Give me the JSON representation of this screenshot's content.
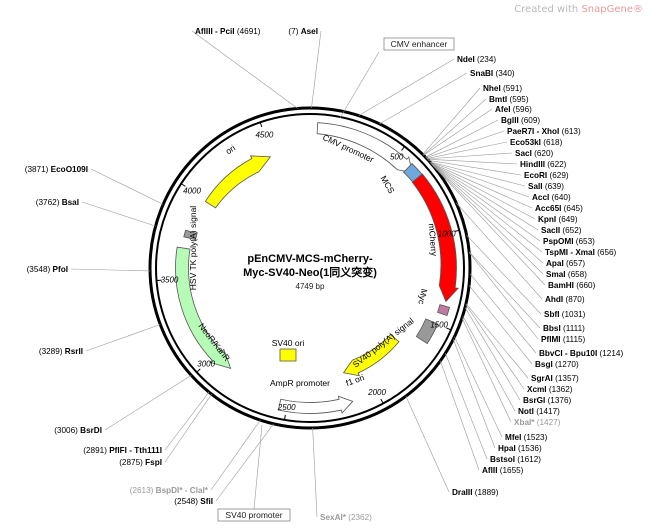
{
  "credit": {
    "text": "Created with ",
    "brand": "SnapGene®"
  },
  "plasmid": {
    "name_line1": "pEnCMV-MCS-mCherry-",
    "name_line2": "Myc-SV40-Neo(1同义突变)",
    "size_line": "4749 bp"
  },
  "ticks": [
    "500",
    "1000",
    "1500",
    "2000",
    "2500",
    "3000",
    "3500",
    "4000",
    "4500"
  ],
  "features": [
    {
      "name": "ori",
      "label": "ori",
      "color": "#ffff00"
    },
    {
      "name": "cmv-promoter",
      "label": "CMV promoter",
      "color": "#ffffff"
    },
    {
      "name": "mcs",
      "label": "MCS",
      "color": "#6fa8dc"
    },
    {
      "name": "mcherry",
      "label": "mCherry",
      "color": "#ff0000"
    },
    {
      "name": "myc",
      "label": "Myc",
      "color": "#c27ba0"
    },
    {
      "name": "sv40-polya",
      "label": "SV40 poly(A) signal",
      "color": "#999999"
    },
    {
      "name": "f1-ori",
      "label": "f1 ori",
      "color": "#ffff00"
    },
    {
      "name": "ampr-promoter",
      "label": "AmpR promoter",
      "color": "#ffffff"
    },
    {
      "name": "neor-kanr",
      "label": "NeoR/KanR",
      "color": "#b6fcb6"
    },
    {
      "name": "sv40-ori",
      "label": "SV40 ori",
      "color": "#ffff00"
    },
    {
      "name": "hsv-tk-polya",
      "label": "HSV TK poly(A) signal",
      "color": "#999999"
    }
  ],
  "boxed_labels": [
    {
      "name": "cmv-enhancer-label",
      "text": "CMV enhancer"
    },
    {
      "name": "sv40-promoter-label",
      "text": "SV40 promoter"
    }
  ],
  "sites": [
    {
      "name": "AflIII - PciI",
      "pos": "(4691)",
      "gray": false
    },
    {
      "name": "AseI",
      "pos": "(7)",
      "gray": false
    },
    {
      "name": "NdeI",
      "pos": "(234)",
      "gray": false
    },
    {
      "name": "SnaBI",
      "pos": "(340)",
      "gray": false
    },
    {
      "name": "NheI",
      "pos": "(591)",
      "gray": false
    },
    {
      "name": "BmtI",
      "pos": "(595)",
      "gray": false
    },
    {
      "name": "AfeI",
      "pos": "(596)",
      "gray": false
    },
    {
      "name": "BglII",
      "pos": "(609)",
      "gray": false
    },
    {
      "name": "PaeR7I - XhoI",
      "pos": "(613)",
      "gray": false
    },
    {
      "name": "Eco53kI",
      "pos": "(618)",
      "gray": false
    },
    {
      "name": "SacI",
      "pos": "(620)",
      "gray": false
    },
    {
      "name": "HindIII",
      "pos": "(622)",
      "gray": false
    },
    {
      "name": "EcoRI",
      "pos": "(629)",
      "gray": false
    },
    {
      "name": "SalI",
      "pos": "(639)",
      "gray": false
    },
    {
      "name": "AccI",
      "pos": "(640)",
      "gray": false
    },
    {
      "name": "Acc65I",
      "pos": "(645)",
      "gray": false
    },
    {
      "name": "KpnI",
      "pos": "(649)",
      "gray": false
    },
    {
      "name": "SacII",
      "pos": "(652)",
      "gray": false
    },
    {
      "name": "PspOMI",
      "pos": "(653)",
      "gray": false
    },
    {
      "name": "TspMI - XmaI",
      "pos": "(656)",
      "gray": false
    },
    {
      "name": "ApaI",
      "pos": "(657)",
      "gray": false
    },
    {
      "name": "SmaI",
      "pos": "(658)",
      "gray": false
    },
    {
      "name": "BamHI",
      "pos": "(660)",
      "gray": false
    },
    {
      "name": "AhdI",
      "pos": "(870)",
      "gray": false
    },
    {
      "name": "SbfI",
      "pos": "(1031)",
      "gray": false
    },
    {
      "name": "BbsI",
      "pos": "(1111)",
      "gray": false
    },
    {
      "name": "PflMI",
      "pos": "(1115)",
      "gray": false
    },
    {
      "name": "BbvCI - Bpu10I",
      "pos": "(1214)",
      "gray": false
    },
    {
      "name": "BsgI",
      "pos": "(1270)",
      "gray": false
    },
    {
      "name": "SgrAI",
      "pos": "(1357)",
      "gray": false
    },
    {
      "name": "XcmI",
      "pos": "(1362)",
      "gray": false
    },
    {
      "name": "BsrGI",
      "pos": "(1376)",
      "gray": false
    },
    {
      "name": "NotI",
      "pos": "(1417)",
      "gray": false
    },
    {
      "name": "XbaI*",
      "pos": "(1427)",
      "gray": true
    },
    {
      "name": "MfeI",
      "pos": "(1523)",
      "gray": false
    },
    {
      "name": "HpaI",
      "pos": "(1536)",
      "gray": false
    },
    {
      "name": "BstsoI",
      "pos": "(1612)",
      "gray": false
    },
    {
      "name": "AflII",
      "pos": "(1655)",
      "gray": false
    },
    {
      "name": "DraIII",
      "pos": "(1889)",
      "gray": false
    },
    {
      "name": "SexAI*",
      "pos": "(2362)",
      "gray": true
    },
    {
      "name": "SfiI",
      "pos": "(2548)",
      "gray": false
    },
    {
      "name": "BspDI* - ClaI*",
      "pos": "(2613)",
      "gray": true
    },
    {
      "name": "FspI",
      "pos": "(2875)",
      "gray": false
    },
    {
      "name": "PflFI - Tth111I",
      "pos": "(2891)",
      "gray": false
    },
    {
      "name": "BsrDI",
      "pos": "(3006)",
      "gray": false
    },
    {
      "name": "RsrII",
      "pos": "(3289)",
      "gray": false
    },
    {
      "name": "PfoI",
      "pos": "(3548)",
      "gray": false
    },
    {
      "name": "BsaI",
      "pos": "(3762)",
      "gray": false
    },
    {
      "name": "EcoO109I",
      "pos": "(3871)",
      "gray": false
    }
  ]
}
